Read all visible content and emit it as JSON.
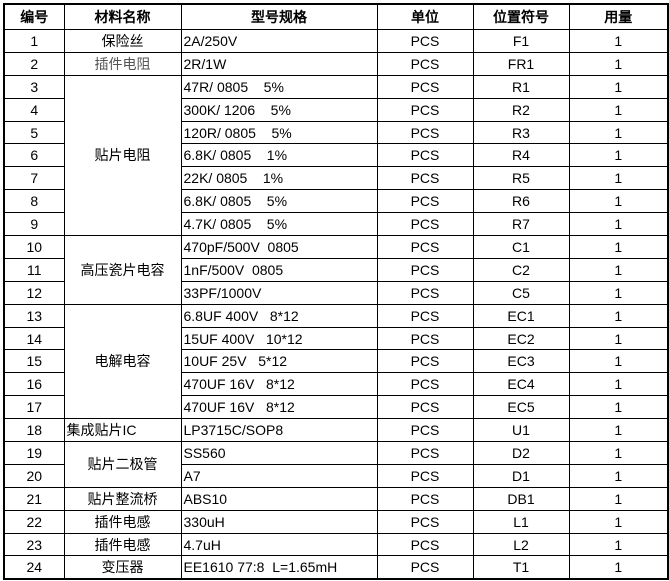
{
  "headers": [
    "编号",
    "材料名称",
    "型号规格",
    "单位",
    "位置符号",
    "用量"
  ],
  "rows": [
    {
      "no": "1",
      "name": "保险丝",
      "name_span": 1,
      "spec": "2A/250V",
      "unit": "PCS",
      "ref": "F1",
      "qty": "1"
    },
    {
      "no": "2",
      "name": "插件电阻",
      "name_span": 1,
      "name_gray": true,
      "spec": "2R/1W",
      "unit": "PCS",
      "ref": "FR1",
      "qty": "1"
    },
    {
      "no": "3",
      "name": "贴片电阻",
      "name_span": 7,
      "spec": "47R/ 0805    5%",
      "unit": "PCS",
      "ref": "R1",
      "qty": "1"
    },
    {
      "no": "4",
      "spec": "300K/ 1206    5%",
      "unit": "PCS",
      "ref": "R2",
      "qty": "1"
    },
    {
      "no": "5",
      "spec": "120R/ 0805    5%",
      "unit": "PCS",
      "ref": "R3",
      "qty": "1"
    },
    {
      "no": "6",
      "spec": "6.8K/ 0805    1%",
      "unit": "PCS",
      "ref": "R4",
      "qty": "1"
    },
    {
      "no": "7",
      "spec": "22K/ 0805    1%",
      "unit": "PCS",
      "ref": "R5",
      "qty": "1"
    },
    {
      "no": "8",
      "spec": "6.8K/ 0805    5%",
      "unit": "PCS",
      "ref": "R6",
      "qty": "1"
    },
    {
      "no": "9",
      "spec": "4.7K/ 0805    5%",
      "unit": "PCS",
      "ref": "R7",
      "qty": "1"
    },
    {
      "no": "10",
      "name": "高压瓷片电容",
      "name_span": 3,
      "spec": "470pF/500V  0805",
      "unit": "PCS",
      "ref": "C1",
      "qty": "1"
    },
    {
      "no": "11",
      "spec": "1nF/500V  0805",
      "unit": "PCS",
      "ref": "C2",
      "qty": "1"
    },
    {
      "no": "12",
      "spec": "33PF/1000V",
      "unit": "PCS",
      "ref": "C5",
      "qty": "1"
    },
    {
      "no": "13",
      "name": "电解电容",
      "name_span": 5,
      "spec": "6.8UF 400V   8*12",
      "unit": "PCS",
      "ref": "EC1",
      "qty": "1"
    },
    {
      "no": "14",
      "spec": "15UF 400V   10*12",
      "unit": "PCS",
      "ref": "EC2",
      "qty": "1"
    },
    {
      "no": "15",
      "spec": "10UF 25V   5*12",
      "unit": "PCS",
      "ref": "EC3",
      "qty": "1"
    },
    {
      "no": "16",
      "spec": "470UF 16V   8*12",
      "unit": "PCS",
      "ref": "EC4",
      "qty": "1"
    },
    {
      "no": "17",
      "spec": "470UF 16V   8*12",
      "unit": "PCS",
      "ref": "EC5",
      "qty": "1"
    },
    {
      "no": "18",
      "name": "集成贴片IC",
      "name_span": 1,
      "name_left": true,
      "spec": "LP3715C/SOP8",
      "unit": "PCS",
      "ref": "U1",
      "qty": "1"
    },
    {
      "no": "19",
      "name": "贴片二极管",
      "name_span": 2,
      "spec": "SS560",
      "unit": "PCS",
      "ref": "D2",
      "qty": "1"
    },
    {
      "no": "20",
      "spec": "A7",
      "unit": "PCS",
      "ref": "D1",
      "qty": "1"
    },
    {
      "no": "21",
      "name": "贴片整流桥",
      "name_span": 1,
      "spec": "ABS10",
      "unit": "PCS",
      "ref": "DB1",
      "qty": "1"
    },
    {
      "no": "22",
      "name": "插件电感",
      "name_span": 1,
      "spec": "330uH",
      "unit": "PCS",
      "ref": "L1",
      "qty": "1"
    },
    {
      "no": "23",
      "name": "插件电感",
      "name_span": 1,
      "spec": "4.7uH",
      "unit": "PCS",
      "ref": "L2",
      "qty": "1"
    },
    {
      "no": "24",
      "name": "变压器",
      "name_span": 1,
      "spec": "EE1610 77:8  L=1.65mH",
      "unit": "PCS",
      "ref": "T1",
      "qty": "1"
    }
  ]
}
